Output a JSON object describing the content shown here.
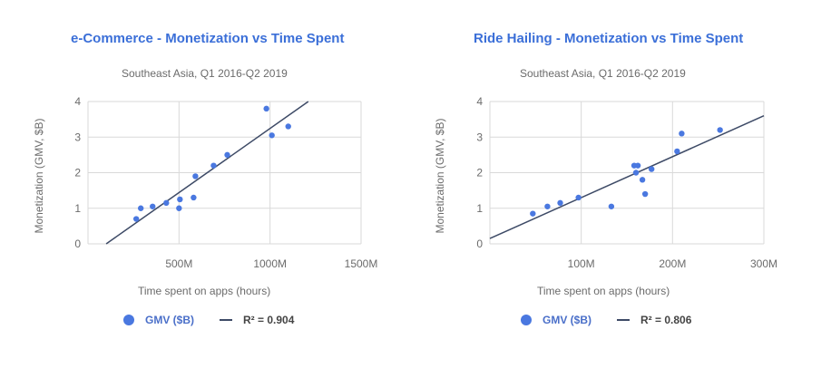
{
  "colors": {
    "point": "#4a78e0",
    "trend": "#3d4a66",
    "grid": "#d9d9d9",
    "axis_text": "#6b6b6b",
    "title": "#3b6fd8"
  },
  "chart_data": [
    {
      "type": "scatter",
      "title": "e-Commerce - Monetization vs Time Spent",
      "subtitle": "Southeast Asia, Q1 2016-Q2 2019",
      "xlabel": "Time spent on apps (hours)",
      "ylabel": "Monetization (GMV, $B)",
      "xlim": [
        0,
        1500
      ],
      "ylim": [
        0,
        4
      ],
      "xticks": [
        {
          "v": 500,
          "label": "500M"
        },
        {
          "v": 1000,
          "label": "1000M"
        },
        {
          "v": 1500,
          "label": "1500M"
        }
      ],
      "yticks": [
        0,
        1,
        2,
        3,
        4
      ],
      "grid": true,
      "legend_position": "bottom",
      "series": [
        {
          "name": "GMV ($B)",
          "kind": "points",
          "points": [
            [
              265,
              0.7
            ],
            [
              290,
              1.0
            ],
            [
              355,
              1.05
            ],
            [
              430,
              1.15
            ],
            [
              500,
              1.0
            ],
            [
              505,
              1.25
            ],
            [
              580,
              1.3
            ],
            [
              590,
              1.9
            ],
            [
              690,
              2.2
            ],
            [
              765,
              2.5
            ],
            [
              980,
              3.8
            ],
            [
              1010,
              3.05
            ],
            [
              1100,
              3.3
            ]
          ]
        },
        {
          "name": "R² = 0.904",
          "kind": "trendline",
          "points": [
            [
              100,
              0
            ],
            [
              1210,
              4
            ]
          ]
        }
      ]
    },
    {
      "type": "scatter",
      "title": "Ride Hailing - Monetization vs Time Spent",
      "subtitle": "Southeast Asia, Q1 2016-Q2 2019",
      "xlabel": "Time spent on apps (hours)",
      "ylabel": "Monetization (GMV, $B)",
      "xlim": [
        0,
        300
      ],
      "ylim": [
        0,
        4
      ],
      "xticks": [
        {
          "v": 100,
          "label": "100M"
        },
        {
          "v": 200,
          "label": "200M"
        },
        {
          "v": 300,
          "label": "300M"
        }
      ],
      "yticks": [
        0,
        1,
        2,
        3,
        4
      ],
      "grid": true,
      "legend_position": "bottom",
      "series": [
        {
          "name": "GMV ($B)",
          "kind": "points",
          "points": [
            [
              47,
              0.85
            ],
            [
              63,
              1.05
            ],
            [
              77,
              1.15
            ],
            [
              97,
              1.3
            ],
            [
              133,
              1.05
            ],
            [
              158,
              2.2
            ],
            [
              160,
              2.0
            ],
            [
              162,
              2.2
            ],
            [
              167,
              1.8
            ],
            [
              170,
              1.4
            ],
            [
              177,
              2.1
            ],
            [
              205,
              2.6
            ],
            [
              210,
              3.1
            ],
            [
              252,
              3.2
            ]
          ]
        },
        {
          "name": "R² = 0.806",
          "kind": "trendline",
          "points": [
            [
              0,
              0.15
            ],
            [
              300,
              3.6
            ]
          ]
        }
      ]
    }
  ]
}
